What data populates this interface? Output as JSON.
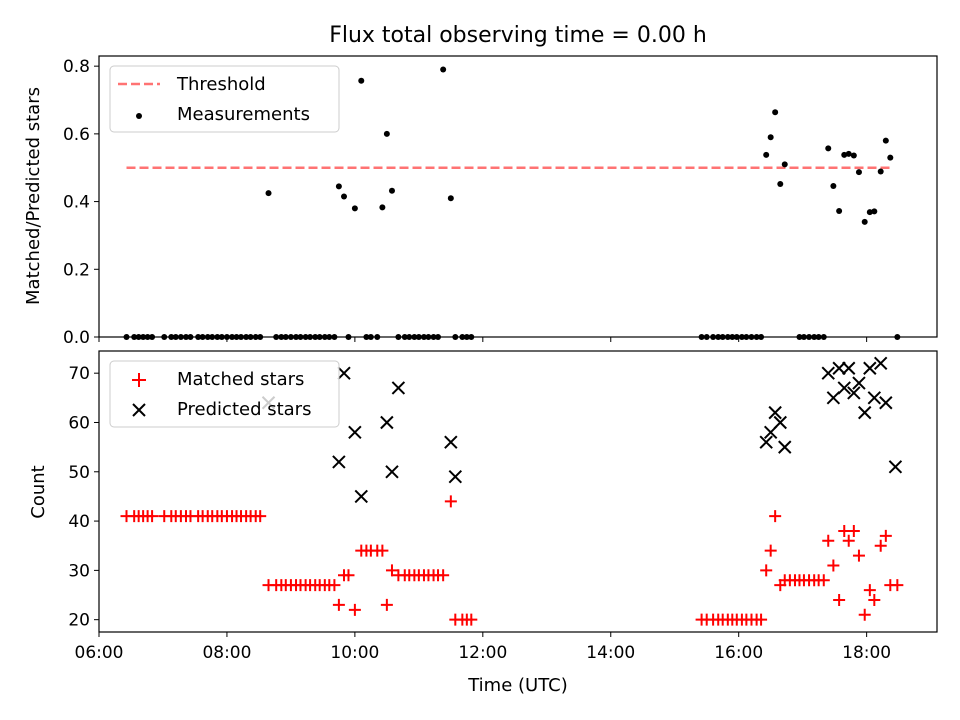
{
  "chart_data": [
    {
      "type": "scatter",
      "title": "Flux total observing time = 0.00 h",
      "ylabel": "Matched/Predicted stars",
      "xlabel": "",
      "xlim": [
        6.0,
        19.1
      ],
      "ylim": [
        0.0,
        0.83
      ],
      "yticks": [
        0.0,
        0.2,
        0.4,
        0.6,
        0.8
      ],
      "ytick_labels": [
        "0.0",
        "0.2",
        "0.4",
        "0.6",
        "0.8"
      ],
      "threshold": {
        "name": "Threshold",
        "value": 0.5,
        "x": [
          6.43,
          18.42
        ],
        "color": "#ff7373",
        "style": "dashed"
      },
      "legend": {
        "position": "upper-left",
        "entries": [
          "Threshold",
          "Measurements"
        ]
      },
      "series": [
        {
          "name": "Measurements",
          "color": "#000000",
          "marker": "dot",
          "x": [
            6.43,
            6.55,
            6.62,
            6.69,
            6.76,
            6.83,
            7.02,
            7.13,
            7.2,
            7.28,
            7.36,
            7.43,
            7.55,
            7.62,
            7.7,
            7.77,
            7.85,
            7.92,
            8.0,
            8.08,
            8.15,
            8.22,
            8.3,
            8.37,
            8.45,
            8.52,
            8.65,
            8.77,
            8.85,
            8.92,
            9.0,
            9.08,
            9.15,
            9.23,
            9.3,
            9.38,
            9.45,
            9.53,
            9.6,
            9.68,
            9.75,
            9.83,
            9.9,
            10.0,
            10.1,
            10.18,
            10.25,
            10.35,
            10.43,
            10.5,
            10.58,
            10.68,
            10.78,
            10.85,
            10.93,
            11.0,
            11.08,
            11.15,
            11.23,
            11.3,
            11.38,
            11.5,
            11.57,
            11.68,
            11.75,
            11.82,
            15.42,
            15.5,
            15.6,
            15.68,
            15.75,
            15.83,
            15.9,
            15.97,
            16.05,
            16.12,
            16.2,
            16.28,
            16.35,
            16.43,
            16.5,
            16.57,
            16.65,
            16.72,
            16.95,
            17.02,
            17.1,
            17.18,
            17.25,
            17.33,
            17.4,
            17.48,
            17.57,
            17.65,
            17.72,
            17.8,
            17.88,
            17.97,
            18.05,
            18.12,
            18.22,
            18.3,
            18.37,
            18.48
          ],
          "y": [
            0,
            0,
            0,
            0,
            0,
            0,
            0,
            0,
            0,
            0,
            0,
            0,
            0,
            0,
            0,
            0,
            0,
            0,
            0,
            0,
            0,
            0,
            0,
            0,
            0,
            0,
            0.425,
            0,
            0,
            0,
            0,
            0,
            0,
            0,
            0,
            0,
            0,
            0,
            0,
            0,
            0.445,
            0.415,
            0,
            0.38,
            0.757,
            0,
            0,
            0,
            0.383,
            0.6,
            0.432,
            0,
            0,
            0,
            0,
            0,
            0,
            0,
            0,
            0,
            0.79,
            0.41,
            0,
            0,
            0,
            0,
            0,
            0,
            0,
            0,
            0,
            0,
            0,
            0,
            0,
            0,
            0,
            0,
            0,
            0.538,
            0.59,
            0.664,
            0.452,
            0.51,
            0,
            0,
            0,
            0,
            0,
            0,
            0.557,
            0.446,
            0.372,
            0.538,
            0.541,
            0.536,
            0.487,
            0.34,
            0.369,
            0.371,
            0.489,
            0.58,
            0.53,
            0.0
          ]
        }
      ]
    },
    {
      "type": "scatter",
      "title": "",
      "ylabel": "Count",
      "xlabel": "Time (UTC)",
      "xlim": [
        6.0,
        19.1
      ],
      "ylim": [
        17.5,
        74.5
      ],
      "yticks": [
        20,
        30,
        40,
        50,
        60,
        70
      ],
      "ytick_labels": [
        "20",
        "30",
        "40",
        "50",
        "60",
        "70"
      ],
      "xticks": [
        6,
        8,
        10,
        12,
        14,
        16,
        18
      ],
      "xtick_labels": [
        "06:00",
        "08:00",
        "10:00",
        "12:00",
        "14:00",
        "16:00",
        "18:00"
      ],
      "legend": {
        "position": "upper-left",
        "entries": [
          "Matched stars",
          "Predicted stars"
        ]
      },
      "series": [
        {
          "name": "Matched stars",
          "color": "#ff0000",
          "marker": "plus",
          "x": [
            6.43,
            6.55,
            6.62,
            6.69,
            6.76,
            6.83,
            7.02,
            7.13,
            7.2,
            7.28,
            7.36,
            7.43,
            7.55,
            7.62,
            7.7,
            7.77,
            7.85,
            7.92,
            8.0,
            8.08,
            8.15,
            8.22,
            8.3,
            8.37,
            8.45,
            8.52,
            8.65,
            8.77,
            8.85,
            8.92,
            9.0,
            9.08,
            9.15,
            9.23,
            9.3,
            9.38,
            9.45,
            9.53,
            9.6,
            9.68,
            9.75,
            9.83,
            9.9,
            10.0,
            10.1,
            10.18,
            10.25,
            10.35,
            10.43,
            10.5,
            10.58,
            10.68,
            10.78,
            10.85,
            10.93,
            11.0,
            11.08,
            11.15,
            11.23,
            11.3,
            11.38,
            11.5,
            11.57,
            11.68,
            11.75,
            11.82,
            15.42,
            15.5,
            15.6,
            15.68,
            15.75,
            15.83,
            15.9,
            15.97,
            16.05,
            16.12,
            16.2,
            16.28,
            16.35,
            16.43,
            16.5,
            16.57,
            16.65,
            16.72,
            16.8,
            16.88,
            16.95,
            17.02,
            17.1,
            17.18,
            17.25,
            17.33,
            17.4,
            17.48,
            17.57,
            17.65,
            17.72,
            17.8,
            17.88,
            17.97,
            18.05,
            18.12,
            18.22,
            18.3,
            18.37,
            18.48
          ],
          "y": [
            41,
            41,
            41,
            41,
            41,
            41,
            41,
            41,
            41,
            41,
            41,
            41,
            41,
            41,
            41,
            41,
            41,
            41,
            41,
            41,
            41,
            41,
            41,
            41,
            41,
            41,
            27,
            27,
            27,
            27,
            27,
            27,
            27,
            27,
            27,
            27,
            27,
            27,
            27,
            27,
            23,
            29,
            29,
            22,
            34,
            34,
            34,
            34,
            34,
            23,
            30,
            29,
            29,
            29,
            29,
            29,
            29,
            29,
            29,
            29,
            29,
            44,
            20,
            20,
            20,
            20,
            20,
            20,
            20,
            20,
            20,
            20,
            20,
            20,
            20,
            20,
            20,
            20,
            20,
            30,
            34,
            41,
            27,
            28,
            28,
            28,
            28,
            28,
            28,
            28,
            28,
            28,
            36,
            31,
            24,
            38,
            36,
            38,
            33,
            21,
            26,
            24,
            35,
            37,
            27,
            27
          ]
        },
        {
          "name": "Predicted stars",
          "color": "#000000",
          "marker": "x",
          "x": [
            8.65,
            9.75,
            9.83,
            10.0,
            10.1,
            10.5,
            10.58,
            10.68,
            11.5,
            11.57,
            16.43,
            16.5,
            16.57,
            16.65,
            16.72,
            17.4,
            17.48,
            17.57,
            17.65,
            17.72,
            17.8,
            17.88,
            17.97,
            18.05,
            18.12,
            18.22,
            18.3,
            18.45
          ],
          "y": [
            64,
            52,
            70,
            58,
            45,
            60,
            50,
            67,
            56,
            49,
            56,
            58,
            62,
            60,
            55,
            70,
            65,
            71,
            67,
            71,
            66,
            68,
            62,
            71,
            65,
            72,
            64,
            51
          ]
        }
      ]
    }
  ]
}
